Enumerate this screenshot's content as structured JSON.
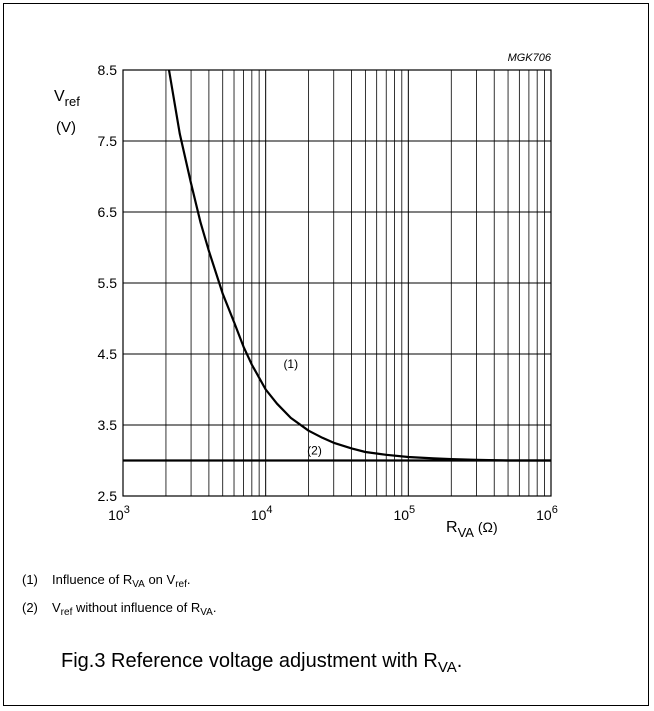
{
  "chart_data": {
    "type": "line",
    "code": "MGK706",
    "ylabel_main": "V",
    "ylabel_sub": "ref",
    "ylabel_unit": "(V)",
    "xlabel_main": "R",
    "xlabel_sub": "VA",
    "xlabel_unit": "(Ω)",
    "xscale": "log",
    "xlim": [
      1000,
      1000000
    ],
    "ylim": [
      2.5,
      8.5
    ],
    "grid": true,
    "y_ticks": [
      "8.5",
      "7.5",
      "6.5",
      "5.5",
      "4.5",
      "3.5",
      "2.5"
    ],
    "y_tick_values": [
      8.5,
      7.5,
      6.5,
      5.5,
      4.5,
      3.5,
      2.5
    ],
    "x_ticks": [
      {
        "value": 1000,
        "base": "10",
        "exp": "3"
      },
      {
        "value": 10000,
        "base": "10",
        "exp": "4"
      },
      {
        "value": 100000,
        "base": "10",
        "exp": "5"
      },
      {
        "value": 1000000,
        "base": "10",
        "exp": "6"
      }
    ],
    "series": [
      {
        "name": "(1)",
        "x": [
          2100,
          2500,
          3000,
          3500,
          4000,
          5000,
          6000,
          7000,
          8000,
          10000,
          12000,
          15000,
          20000,
          25000,
          30000,
          40000,
          50000,
          70000,
          100000,
          150000,
          200000,
          300000,
          500000,
          1000000
        ],
        "y": [
          8.5,
          7.6,
          6.9,
          6.35,
          5.95,
          5.35,
          4.95,
          4.6,
          4.35,
          4.0,
          3.8,
          3.6,
          3.42,
          3.32,
          3.25,
          3.17,
          3.12,
          3.08,
          3.05,
          3.03,
          3.02,
          3.01,
          3.0,
          3.0
        ]
      },
      {
        "name": "(2)",
        "x": [
          1000,
          1000000
        ],
        "y": [
          3.0,
          3.0
        ]
      }
    ]
  },
  "notes": [
    {
      "num": "(1)",
      "t1": "Influence of R",
      "s1": "VA",
      "t2": " on V",
      "s2": "ref",
      "t3": "."
    },
    {
      "num": "(2)",
      "t1": "V",
      "s1": "ref",
      "t2": " without influence of R",
      "s2": "VA",
      "t3": "."
    }
  ],
  "caption": {
    "t1": "Fig.3  Reference voltage adjustment with R",
    "s1": "VA",
    "t2": "."
  }
}
